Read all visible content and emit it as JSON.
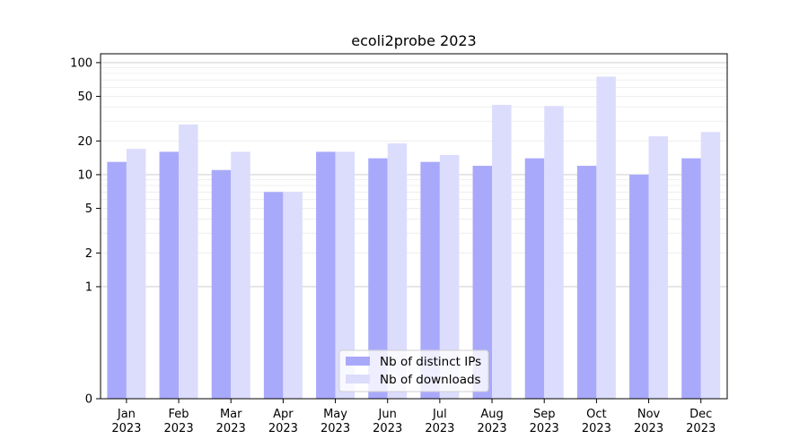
{
  "chart_data": {
    "type": "bar",
    "title": "ecoli2probe 2023",
    "xlabel": "",
    "ylabel": "",
    "yscale": "symlog",
    "ylim": [
      0,
      120
    ],
    "yticks": [
      0,
      1,
      2,
      5,
      10,
      20,
      50,
      100
    ],
    "grid": true,
    "legend_position": "bottom-center",
    "categories": [
      {
        "month": "Jan",
        "year": "2023"
      },
      {
        "month": "Feb",
        "year": "2023"
      },
      {
        "month": "Mar",
        "year": "2023"
      },
      {
        "month": "Apr",
        "year": "2023"
      },
      {
        "month": "May",
        "year": "2023"
      },
      {
        "month": "Jun",
        "year": "2023"
      },
      {
        "month": "Jul",
        "year": "2023"
      },
      {
        "month": "Aug",
        "year": "2023"
      },
      {
        "month": "Sep",
        "year": "2023"
      },
      {
        "month": "Oct",
        "year": "2023"
      },
      {
        "month": "Nov",
        "year": "2023"
      },
      {
        "month": "Dec",
        "year": "2023"
      }
    ],
    "series": [
      {
        "name": "Nb of distinct IPs",
        "color": "#a9a9fb",
        "values": [
          13,
          16,
          11,
          7,
          16,
          14,
          13,
          12,
          14,
          12,
          10,
          14
        ]
      },
      {
        "name": "Nb of downloads",
        "color": "#dcdcfd",
        "values": [
          17,
          28,
          16,
          7,
          16,
          19,
          15,
          42,
          41,
          75,
          22,
          24
        ]
      }
    ]
  }
}
